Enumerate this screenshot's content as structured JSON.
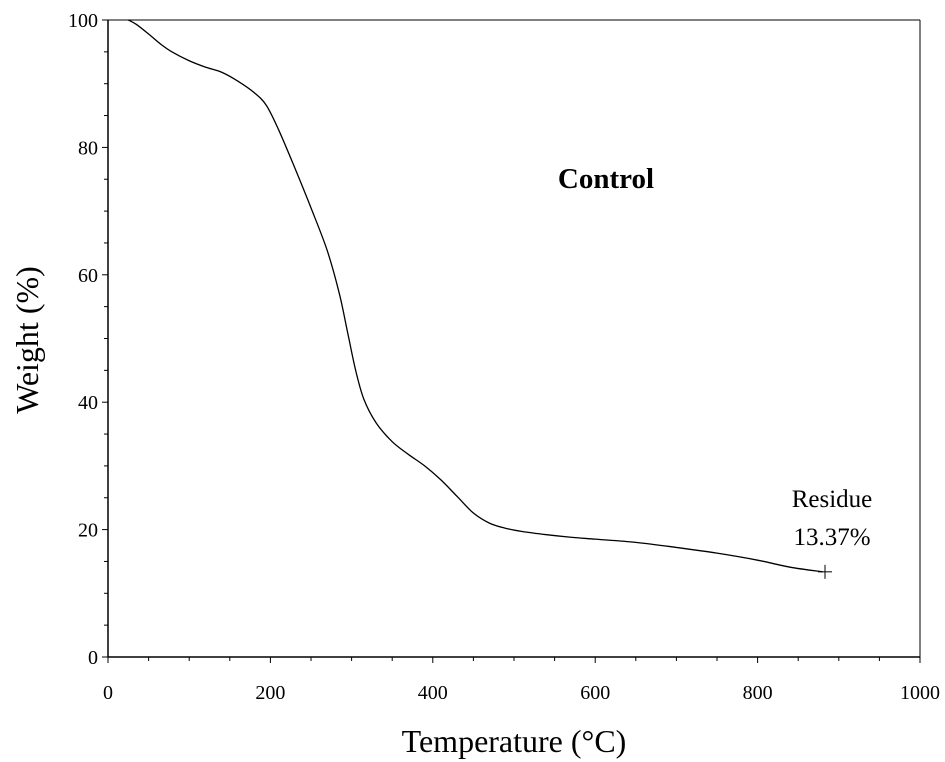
{
  "chart_data": {
    "type": "line",
    "xlabel": "Temperature (°C)",
    "ylabel": "Weight (%)",
    "xlim": [
      0,
      1000
    ],
    "ylim": [
      0,
      100
    ],
    "x_ticks": [
      0,
      200,
      400,
      600,
      800,
      1000
    ],
    "y_ticks": [
      0,
      20,
      40,
      60,
      80,
      100
    ],
    "grid": false,
    "series": [
      {
        "color": "#000000",
        "points": [
          [
            25,
            100
          ],
          [
            35,
            99.3
          ],
          [
            50,
            97.8
          ],
          [
            65,
            96.2
          ],
          [
            80,
            94.9
          ],
          [
            100,
            93.6
          ],
          [
            120,
            92.6
          ],
          [
            140,
            91.8
          ],
          [
            160,
            90.4
          ],
          [
            180,
            88.6
          ],
          [
            195,
            86.6
          ],
          [
            210,
            82.8
          ],
          [
            230,
            76.8
          ],
          [
            250,
            70.5
          ],
          [
            270,
            63.8
          ],
          [
            285,
            57.0
          ],
          [
            295,
            51.0
          ],
          [
            305,
            45.0
          ],
          [
            315,
            40.5
          ],
          [
            330,
            36.8
          ],
          [
            350,
            33.8
          ],
          [
            370,
            31.8
          ],
          [
            390,
            30.0
          ],
          [
            410,
            27.8
          ],
          [
            430,
            25.2
          ],
          [
            450,
            22.6
          ],
          [
            470,
            21.0
          ],
          [
            490,
            20.2
          ],
          [
            510,
            19.7
          ],
          [
            540,
            19.2
          ],
          [
            570,
            18.8
          ],
          [
            600,
            18.5
          ],
          [
            650,
            18.0
          ],
          [
            700,
            17.2
          ],
          [
            750,
            16.3
          ],
          [
            800,
            15.2
          ],
          [
            840,
            14.1
          ],
          [
            880,
            13.37
          ]
        ]
      }
    ],
    "annotations": {
      "title_label": "Control",
      "residue_label": "Residue",
      "residue_value": "13.37%",
      "residue_marker": [
        883,
        13.37
      ]
    }
  }
}
